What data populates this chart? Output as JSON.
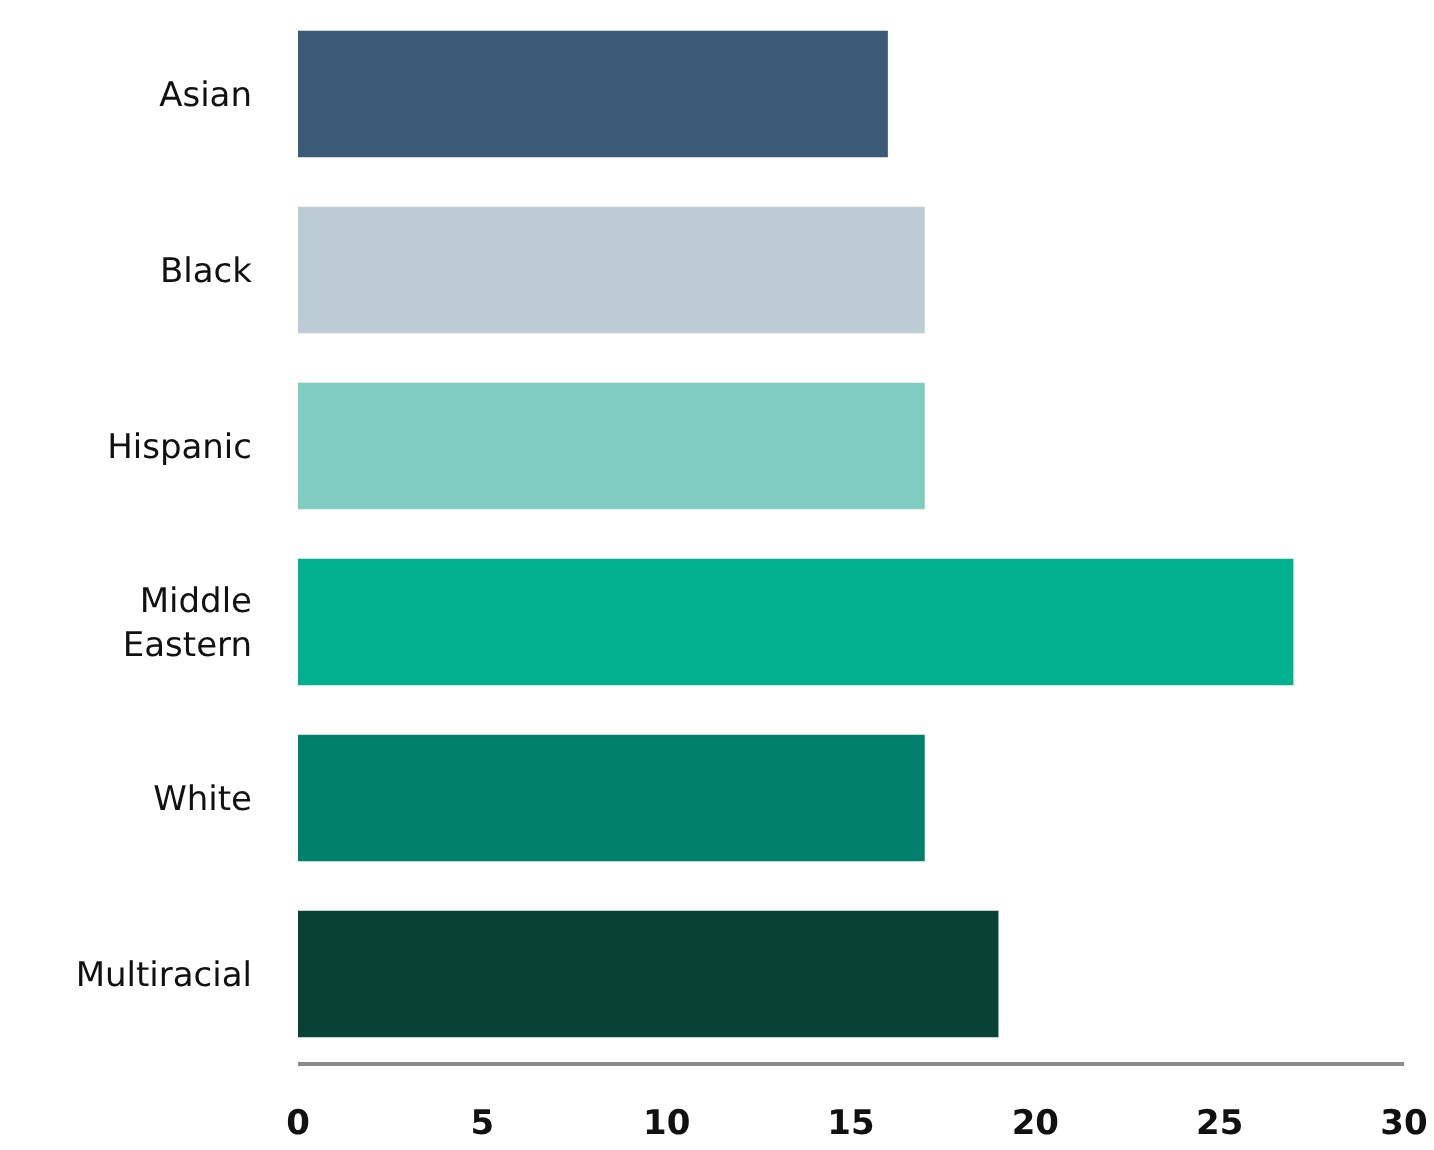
{
  "chart_data": {
    "type": "bar",
    "orientation": "horizontal",
    "categories": [
      "Asian",
      "Black",
      "Hispanic",
      "Middle Eastern",
      "White",
      "Multiracial"
    ],
    "values": [
      16,
      17,
      17,
      27,
      17,
      19
    ],
    "colors": [
      "#3b5a78",
      "#bdcbd4",
      "#7ecdc0",
      "#00b08f",
      "#007f6d",
      "#084236"
    ],
    "xlim": [
      0,
      30
    ],
    "xticks": [
      0,
      5,
      10,
      15,
      20,
      25,
      30
    ]
  }
}
